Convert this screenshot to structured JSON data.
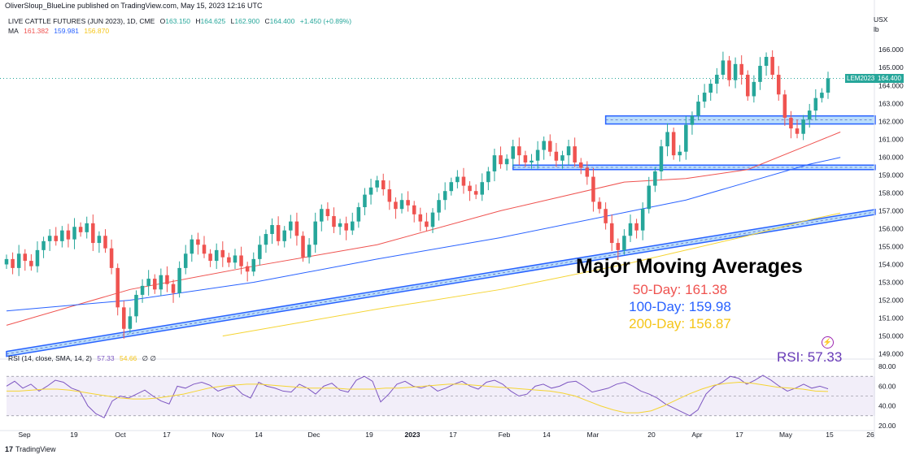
{
  "header": {
    "publisher": "OliverSloup_BlueLine published on TradingView.com, May 15, 2023 12:16 UTC"
  },
  "symbol_line": {
    "name": "LIVE CATTLE FUTURES (JUN 2023), 1D, CME",
    "ohlc": [
      {
        "label": "O",
        "value": "163.150"
      },
      {
        "label": "H",
        "value": "164.625"
      },
      {
        "label": "L",
        "value": "162.900"
      },
      {
        "label": "C",
        "value": "164.400"
      }
    ],
    "change": "+1.450 (+0.89%)",
    "change_color": "#26a69a"
  },
  "ma_line": {
    "label": "MA",
    "values": [
      {
        "value": "161.382",
        "color": "#ef5350"
      },
      {
        "value": "159.981",
        "color": "#2962ff"
      },
      {
        "value": "156.870",
        "color": "#f5d432"
      }
    ]
  },
  "price_axis": {
    "currency": "USX",
    "unit": "lb",
    "ticks": [
      "166.000",
      "165.000",
      "164.000",
      "163.000",
      "162.000",
      "161.000",
      "160.000",
      "159.000",
      "158.000",
      "157.000",
      "156.000",
      "155.000",
      "154.000",
      "153.000",
      "152.000",
      "151.000",
      "150.000",
      "149.000"
    ],
    "last_symbol": "LEM2023",
    "last_price": "164.400"
  },
  "rsi_info": {
    "label": "RSI (14, close, SMA, 14, 2)",
    "value": "57.33",
    "ma_value": "54.66",
    "extra": "∅ ∅"
  },
  "rsi_axis": [
    "80.00",
    "60.00",
    "40.00",
    "20.00"
  ],
  "annotation": {
    "title": "Major Moving Averages",
    "lines": [
      {
        "text": "50-Day: 161.38",
        "color": "#ef5350"
      },
      {
        "text": "100-Day: 159.98",
        "color": "#2962ff"
      },
      {
        "text": "200-Day: 156.87",
        "color": "#f5c518"
      }
    ],
    "rsi_text": "RSI: 57.33"
  },
  "time_axis": [
    "Sep",
    "19",
    "Oct",
    "17",
    "Nov",
    "14",
    "Dec",
    "19",
    "2023",
    "17",
    "Feb",
    "14",
    "Mar",
    "20",
    "Apr",
    "17",
    "May",
    "15",
    "26"
  ],
  "footer": {
    "brand": "TradingView"
  },
  "chart_data": {
    "type": "candlestick",
    "ylim": [
      148.8,
      166.6
    ],
    "candles_close": [
      154.3,
      153.8,
      154.6,
      154.2,
      153.9,
      154.8,
      155.3,
      155.6,
      155.3,
      155.9,
      155.4,
      156.1,
      155.8,
      156.3,
      155.2,
      155.6,
      154.9,
      153.8,
      151.6,
      150.4,
      151.1,
      152.3,
      152.8,
      153.2,
      152.6,
      153.4,
      152.9,
      152.4,
      153.8,
      154.6,
      155.4,
      155.1,
      154.6,
      154.2,
      154.8,
      154.4,
      154.1,
      154.5,
      153.9,
      153.6,
      154.3,
      155.1,
      155.7,
      156.2,
      155.3,
      155.9,
      156.4,
      155.6,
      154.4,
      155.1,
      156.4,
      157.1,
      156.7,
      156.1,
      156.3,
      155.9,
      156.4,
      157.2,
      157.9,
      158.3,
      158.7,
      158.2,
      157.5,
      157.1,
      157.6,
      157.3,
      156.8,
      156.4,
      156.1,
      156.9,
      157.6,
      158.1,
      158.6,
      158.9,
      158.4,
      158.1,
      157.9,
      158.6,
      159.2,
      160.1,
      159.6,
      159.9,
      160.6,
      160.1,
      159.7,
      159.8,
      160.4,
      160.9,
      160.3,
      159.8,
      160.1,
      160.6,
      159.7,
      159.4,
      158.9,
      157.5,
      157.1,
      156.3,
      155.2,
      154.8,
      155.6,
      156.3,
      155.9,
      157.1,
      158.4,
      159.2,
      160.6,
      161.4,
      160.1,
      160.3,
      161.8,
      162.3,
      163.1,
      163.6,
      164.1,
      164.6,
      165.4,
      164.3,
      165.2,
      164.6,
      163.4,
      164.2,
      165.1,
      165.6,
      164.6,
      163.5,
      162.2,
      161.6,
      161.3,
      162.1,
      162.6,
      163.3,
      163.6,
      164.4
    ],
    "ma50": [
      [
        0,
        150.6
      ],
      [
        20,
        152.6
      ],
      [
        40,
        153.9
      ],
      [
        60,
        155.1
      ],
      [
        80,
        157.0
      ],
      [
        100,
        158.6
      ],
      [
        110,
        158.8
      ],
      [
        120,
        159.3
      ],
      [
        130,
        160.7
      ],
      [
        135,
        161.4
      ]
    ],
    "ma100": [
      [
        0,
        151.4
      ],
      [
        20,
        152.0
      ],
      [
        40,
        153.0
      ],
      [
        60,
        154.3
      ],
      [
        80,
        155.5
      ],
      [
        100,
        156.9
      ],
      [
        110,
        157.6
      ],
      [
        120,
        158.6
      ],
      [
        130,
        159.6
      ],
      [
        135,
        159.98
      ]
    ],
    "ma200": [
      [
        35,
        150.0
      ],
      [
        60,
        151.5
      ],
      [
        80,
        152.6
      ],
      [
        100,
        154.0
      ],
      [
        120,
        155.6
      ],
      [
        130,
        156.5
      ],
      [
        135,
        156.87
      ]
    ],
    "trendlines": [
      {
        "name": "rising support",
        "from": [
          0,
          149.0
        ],
        "to": [
          135,
          156.5
        ]
      },
      {
        "name": "resistance zone 1",
        "y": [
          159.3,
          159.55
        ],
        "from_x": 82
      },
      {
        "name": "resistance zone 2",
        "y": [
          161.85,
          162.3
        ],
        "from_x": 97
      }
    ],
    "rsi": [
      60,
      65,
      58,
      62,
      55,
      60,
      66,
      64,
      58,
      55,
      40,
      32,
      28,
      45,
      50,
      48,
      52,
      56,
      50,
      45,
      42,
      60,
      58,
      62,
      64,
      61,
      55,
      58,
      60,
      52,
      48,
      64,
      60,
      58,
      55,
      54,
      62,
      58,
      52,
      60,
      63,
      56,
      54,
      66,
      70,
      65,
      44,
      52,
      62,
      65,
      60,
      58,
      61,
      55,
      58,
      62,
      65,
      60,
      57,
      64,
      66,
      62,
      55,
      50,
      52,
      60,
      62,
      58,
      60,
      64,
      65,
      60,
      54,
      56,
      58,
      62,
      64,
      60,
      55,
      52,
      48,
      42,
      38,
      34,
      30,
      36,
      52,
      60,
      64,
      70,
      68,
      62,
      66,
      71,
      66,
      60,
      55,
      58,
      62,
      58,
      60,
      57.33
    ],
    "rsi_ma": [
      55,
      55,
      56,
      57,
      57,
      56,
      54,
      52,
      50,
      48,
      47,
      47,
      48,
      50,
      52,
      55,
      58,
      60,
      61,
      62,
      62,
      61,
      60,
      59,
      58,
      58,
      58,
      57,
      57,
      57,
      58,
      58,
      59,
      60,
      61,
      62,
      62,
      61,
      60,
      59,
      58,
      57,
      56,
      55,
      53,
      50,
      45,
      40,
      36,
      33,
      33,
      35,
      40,
      46,
      52,
      57,
      61,
      63,
      64,
      63,
      61,
      59,
      58,
      57,
      55,
      54.66
    ]
  }
}
